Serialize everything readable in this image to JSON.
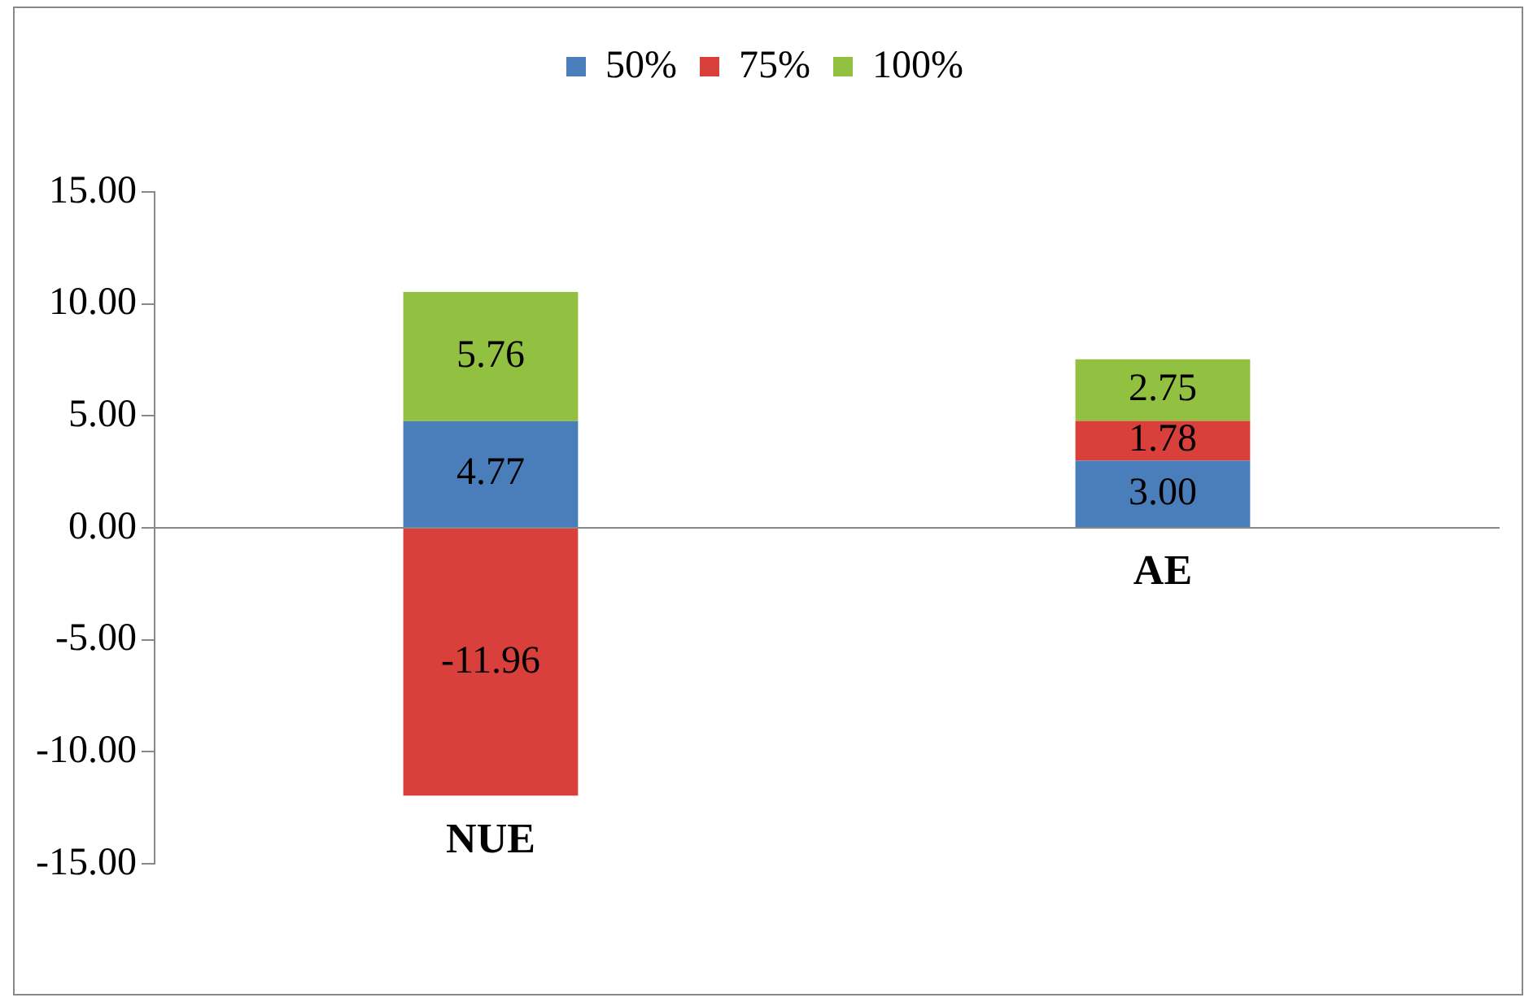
{
  "chart_data": {
    "type": "bar",
    "stacked": true,
    "categories": [
      "NUE",
      "AE"
    ],
    "series": [
      {
        "name": "50%",
        "color": "#4a7ebb",
        "values": [
          4.77,
          3.0
        ]
      },
      {
        "name": "75%",
        "color": "#d9403c",
        "values": [
          -11.96,
          1.78
        ]
      },
      {
        "name": "100%",
        "color": "#92c040",
        "values": [
          5.76,
          2.75
        ]
      }
    ],
    "ylim": [
      -15,
      15
    ],
    "yticks": [
      {
        "value": -15,
        "label": "-15.00"
      },
      {
        "value": -10,
        "label": "-10.00"
      },
      {
        "value": -5,
        "label": "-5.00"
      },
      {
        "value": 0,
        "label": "0.00"
      },
      {
        "value": 5,
        "label": "5.00"
      },
      {
        "value": 10,
        "label": "10.00"
      },
      {
        "value": 15,
        "label": "15.00"
      }
    ],
    "value_labels": [
      [
        "4.77",
        "3.00"
      ],
      [
        "-11.96",
        "1.78"
      ],
      [
        "5.76",
        "2.75"
      ]
    ],
    "legend": "top"
  }
}
